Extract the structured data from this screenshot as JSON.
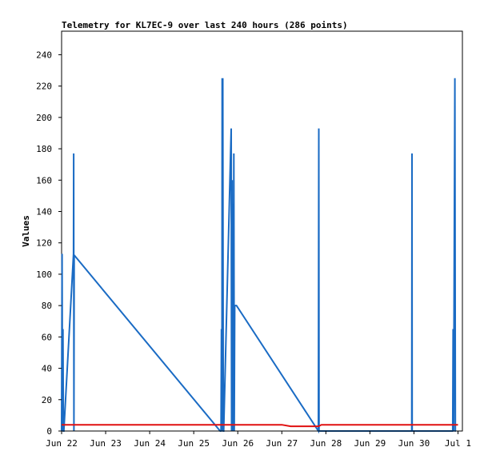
{
  "chart_data": {
    "type": "line",
    "title": "Telemetry for KL7EC-9 over last 240 hours (286 points)",
    "xlabel": "",
    "ylabel": "Values",
    "x_tick_labels": [
      "Jun 22",
      "Jun 23",
      "Jun 24",
      "Jun 25",
      "Jun 26",
      "Jun 27",
      "Jun 28",
      "Jun 29",
      "Jun 30",
      "Jul 1"
    ],
    "x_tick_days": [
      0,
      1,
      2,
      3,
      4,
      5,
      6,
      7,
      8,
      9
    ],
    "y_ticks": [
      0,
      20,
      40,
      60,
      80,
      100,
      120,
      140,
      160,
      180,
      200,
      220,
      240
    ],
    "xlim": [
      0,
      9.1
    ],
    "ylim": [
      0,
      255
    ],
    "grid": false,
    "series": [
      {
        "name": "",
        "color": "#1a6bc4",
        "x": [
          0.0,
          0.01,
          0.02,
          0.03,
          0.04,
          0.05,
          0.27,
          0.275,
          0.28,
          0.285,
          0.29,
          3.6,
          3.62,
          3.63,
          3.64,
          3.645,
          3.65,
          3.66,
          3.67,
          3.68,
          3.85,
          3.86,
          3.87,
          3.88,
          3.89,
          3.9,
          3.91,
          3.92,
          3.93,
          3.94,
          3.95,
          3.96,
          3.97,
          5.83,
          5.84,
          5.845,
          5.85,
          7.95,
          7.955,
          7.96,
          8.88,
          8.89,
          8.9,
          8.93,
          8.94,
          8.95
        ],
        "y": [
          0,
          113,
          0,
          65,
          0,
          0,
          113,
          177,
          0,
          112,
          112,
          0,
          0,
          65,
          0,
          225,
          0,
          225,
          0,
          0,
          193,
          0,
          160,
          0,
          145,
          0,
          177,
          0,
          80,
          80,
          80,
          80,
          80,
          0,
          193,
          0,
          0,
          0,
          177,
          0,
          0,
          65,
          0,
          225,
          0,
          0
        ]
      },
      {
        "name": "",
        "color": "#e01010",
        "x": [
          0.0,
          5.0,
          5.2,
          5.83,
          5.9,
          9.0
        ],
        "y": [
          4,
          4,
          3,
          3,
          4,
          4
        ]
      }
    ]
  }
}
